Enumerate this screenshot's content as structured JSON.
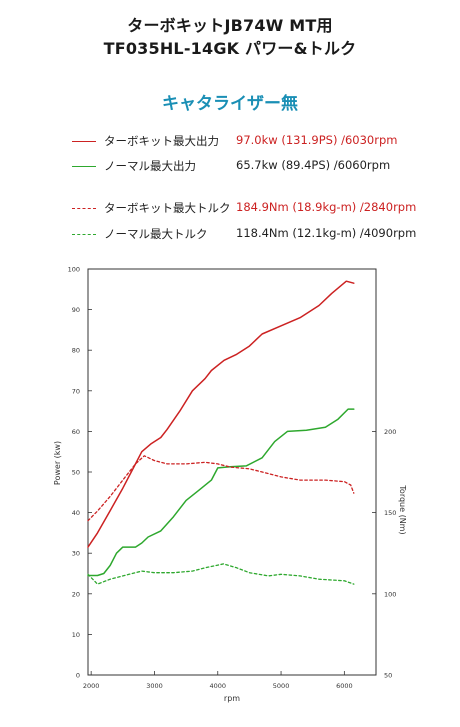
{
  "header": {
    "title_line1": "ターボキットJB74W MT用",
    "title_line2": "TF035HL-14GK パワー&トルク",
    "subtitle": "キャタライザー無"
  },
  "legend": [
    {
      "label": "ターボキット最大出力",
      "value": "97.0kw (131.9PS) /6030rpm",
      "color": "#cc2222",
      "value_color": "#cc2222",
      "style": "solid"
    },
    {
      "label": "ノーマル最大出力",
      "value": "65.7kw (89.4PS) /6060rpm",
      "color": "#2ea82e",
      "value_color": "#222222",
      "style": "solid"
    },
    {
      "label": "ターボキット最大トルク",
      "value": "184.9Nm (18.9kg-m) /2840rpm",
      "color": "#cc2222",
      "value_color": "#cc2222",
      "style": "dashed"
    },
    {
      "label": "ノーマル最大トルク",
      "value": "118.4Nm (12.1kg-m) /4090rpm",
      "color": "#2ea82e",
      "value_color": "#222222",
      "style": "dashed"
    }
  ],
  "chart_data": {
    "type": "line",
    "xlabel": "rpm",
    "ylabel_left": "Power (kw)",
    "ylabel_right": "Torque (Nm)",
    "xlim": [
      1950,
      6500
    ],
    "ylim_left": [
      0,
      100
    ],
    "ylim_right": [
      50,
      300
    ],
    "x_ticks": [
      2000,
      3000,
      4000,
      5000,
      6000
    ],
    "y_left_ticks": [
      0,
      10,
      20,
      30,
      40,
      50,
      60,
      70,
      80,
      90,
      100
    ],
    "y_right_ticks": [
      50,
      100,
      150,
      200
    ],
    "grid": false,
    "series": [
      {
        "name": "ターボキット最大出力",
        "axis": "left",
        "color": "#cc2222",
        "style": "solid",
        "points": [
          [
            1950,
            31.5
          ],
          [
            2100,
            35
          ],
          [
            2300,
            40.5
          ],
          [
            2500,
            46
          ],
          [
            2700,
            52
          ],
          [
            2800,
            55
          ],
          [
            2950,
            57
          ],
          [
            3100,
            58.5
          ],
          [
            3200,
            60.5
          ],
          [
            3400,
            65
          ],
          [
            3600,
            70
          ],
          [
            3800,
            73
          ],
          [
            3900,
            75
          ],
          [
            4100,
            77.5
          ],
          [
            4300,
            79
          ],
          [
            4500,
            81
          ],
          [
            4600,
            82.5
          ],
          [
            4700,
            84
          ],
          [
            5000,
            86
          ],
          [
            5300,
            88
          ],
          [
            5600,
            91
          ],
          [
            5800,
            94
          ],
          [
            6030,
            97
          ],
          [
            6150,
            96.5
          ]
        ]
      },
      {
        "name": "ノーマル最大出力",
        "axis": "left",
        "color": "#2ea82e",
        "style": "solid",
        "points": [
          [
            1950,
            24.5
          ],
          [
            2100,
            24.5
          ],
          [
            2200,
            25
          ],
          [
            2300,
            27
          ],
          [
            2400,
            30
          ],
          [
            2500,
            31.5
          ],
          [
            2700,
            31.5
          ],
          [
            2800,
            32.5
          ],
          [
            2900,
            34
          ],
          [
            3100,
            35.5
          ],
          [
            3300,
            39
          ],
          [
            3500,
            43
          ],
          [
            3700,
            45.5
          ],
          [
            3900,
            48
          ],
          [
            4000,
            51
          ],
          [
            4200,
            51.3
          ],
          [
            4450,
            51.5
          ],
          [
            4700,
            53.5
          ],
          [
            4900,
            57.5
          ],
          [
            5100,
            60
          ],
          [
            5400,
            60.3
          ],
          [
            5700,
            61
          ],
          [
            5900,
            63
          ],
          [
            6060,
            65.5
          ],
          [
            6150,
            65.5
          ]
        ]
      },
      {
        "name": "ターボキット最大トルク",
        "axis": "right",
        "color": "#cc2222",
        "style": "dashed",
        "points": [
          [
            1950,
            145
          ],
          [
            2100,
            151
          ],
          [
            2300,
            160
          ],
          [
            2500,
            170
          ],
          [
            2700,
            180
          ],
          [
            2840,
            185
          ],
          [
            3000,
            182
          ],
          [
            3200,
            180
          ],
          [
            3500,
            180
          ],
          [
            3800,
            181
          ],
          [
            4000,
            180
          ],
          [
            4200,
            178
          ],
          [
            4500,
            177
          ],
          [
            4800,
            174
          ],
          [
            5000,
            172
          ],
          [
            5300,
            170
          ],
          [
            5700,
            170
          ],
          [
            6000,
            169
          ],
          [
            6100,
            167
          ],
          [
            6150,
            162
          ]
        ]
      },
      {
        "name": "ノーマル最大トルク",
        "axis": "right",
        "color": "#2ea82e",
        "style": "dashed",
        "points": [
          [
            1950,
            112
          ],
          [
            2100,
            106
          ],
          [
            2300,
            109
          ],
          [
            2600,
            112
          ],
          [
            2800,
            114
          ],
          [
            3000,
            113
          ],
          [
            3300,
            113
          ],
          [
            3600,
            114
          ],
          [
            3800,
            116
          ],
          [
            4090,
            118.4
          ],
          [
            4300,
            116
          ],
          [
            4500,
            113
          ],
          [
            4800,
            111
          ],
          [
            5000,
            112
          ],
          [
            5300,
            111
          ],
          [
            5600,
            109
          ],
          [
            6000,
            108
          ],
          [
            6150,
            106
          ]
        ]
      }
    ]
  }
}
